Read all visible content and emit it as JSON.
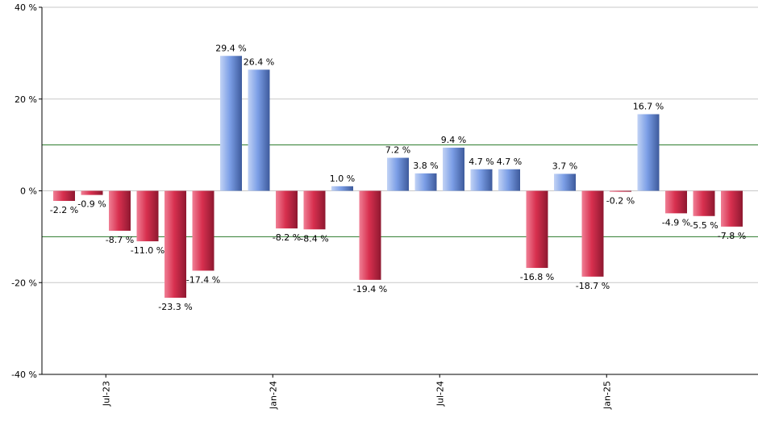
{
  "chart_data": {
    "type": "bar",
    "title": "",
    "xlabel": "",
    "ylabel": "",
    "ylim": [
      -40,
      40
    ],
    "y_ticks": [
      40,
      20,
      0,
      -20,
      -40
    ],
    "y_tick_labels": [
      "40 %",
      "20 %",
      "0 %",
      "-20 %",
      "-40 %"
    ],
    "value_suffix": " %",
    "grid": true,
    "reference_lines": [
      10,
      -10
    ],
    "x_tick_labels": [
      {
        "label": "Jul-23",
        "after_index": 1
      },
      {
        "label": "Jan-24",
        "after_index": 7
      },
      {
        "label": "Jul-24",
        "after_index": 13
      },
      {
        "label": "Jan-25",
        "after_index": 19
      }
    ],
    "values": [
      -2.2,
      -0.9,
      -8.7,
      -11.0,
      -23.3,
      -17.4,
      29.4,
      26.4,
      -8.2,
      -8.4,
      1.0,
      -19.4,
      7.2,
      3.8,
      9.4,
      4.7,
      4.7,
      -16.8,
      3.7,
      -18.7,
      -0.2,
      16.7,
      -4.9,
      -5.5,
      -7.8
    ],
    "value_labels": [
      "-2.2 %",
      "-0.9 %",
      "-8.7 %",
      "-11.0 %",
      "-23.3 %",
      "-17.4 %",
      "29.4 %",
      "26.4 %",
      "-8.2 %",
      "-8.4 %",
      "1.0 %",
      "-19.4 %",
      "7.2 %",
      "3.8 %",
      "9.4 %",
      "4.7 %",
      "4.7 %",
      "-16.8 %",
      "3.7 %",
      "-18.7 %",
      "-0.2 %",
      "16.7 %",
      "-4.9 %",
      "-5.5 %",
      "-7.8 %"
    ],
    "colors": {
      "positive_light": "#c2d3f5",
      "positive_mid": "#7b9ee6",
      "positive_dark": "#3d5a9c",
      "negative_light": "#f07f95",
      "negative_mid": "#d8304f",
      "negative_dark": "#8e1830",
      "grid": "#c8c8c8",
      "reference_line": "#2a7a2a",
      "axis": "#000000"
    }
  }
}
